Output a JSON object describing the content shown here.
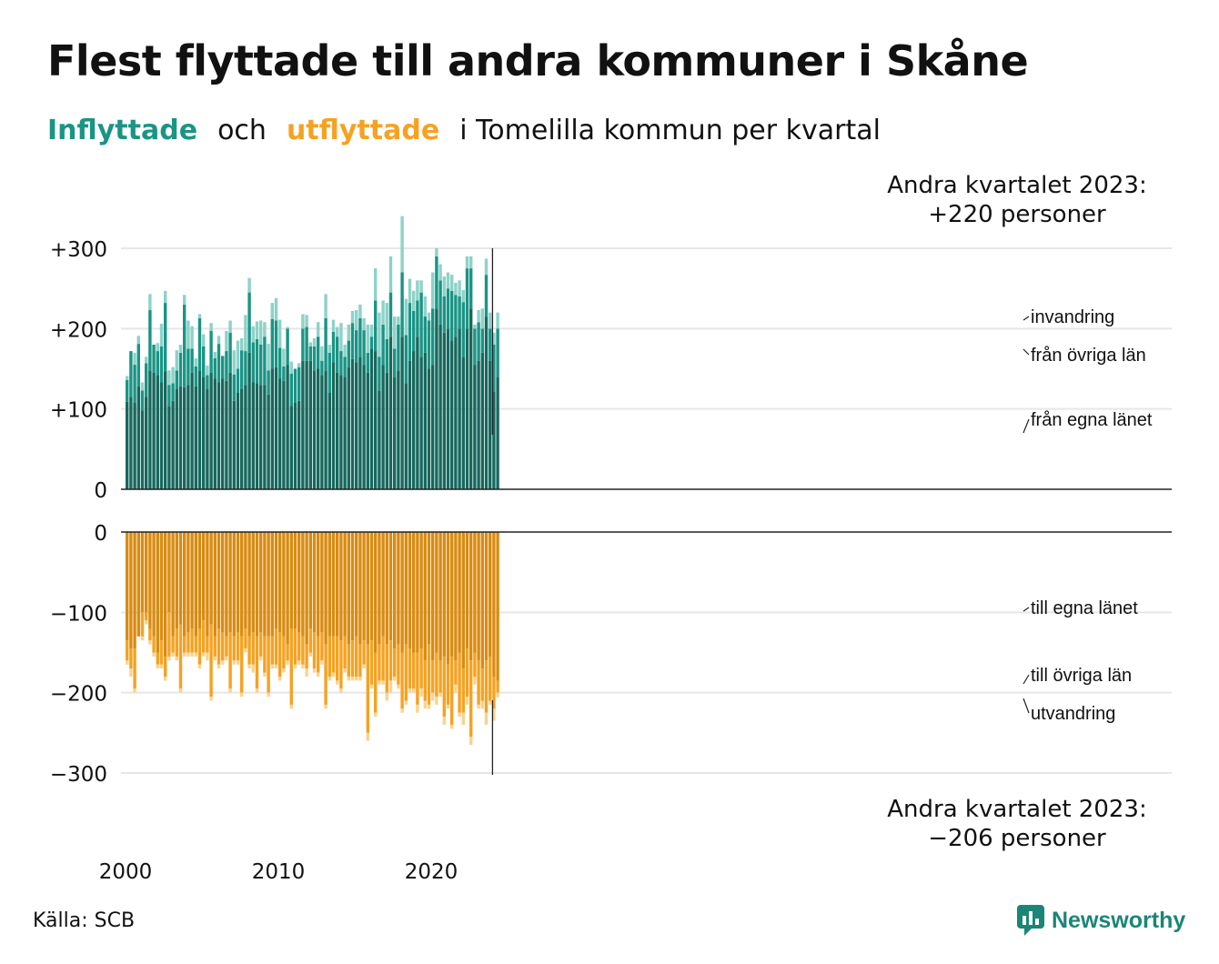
{
  "title": "Flest flyttade till andra kommuner i Skåne",
  "subtitle": {
    "in_word": "Inflyttade",
    "and_word": "och",
    "out_word": "utflyttade",
    "rest": "i Tomelilla  kommun  per  kvartal"
  },
  "source": "Källa: SCB",
  "logo_text": "Newsworthy",
  "colors": {
    "in_egna": "#17685e",
    "in_ovriga": "#1a9485",
    "in_invandring": "#8dd2c9",
    "out_egna": "#d98b12",
    "out_ovriga": "#f5a223",
    "out_utvandring": "#f8d491",
    "grid": "#e6e6e6",
    "axis": "#222222",
    "logo": "#1b8577"
  },
  "chart_data": [
    {
      "type": "bar",
      "stacked": true,
      "name": "Inflyttade",
      "x_start": "2000 Q1",
      "x_end": "2023 Q2",
      "ylim": [
        0,
        300
      ],
      "y_ticks": [
        "0",
        "+100",
        "+200",
        "+300"
      ],
      "x_tick_labels": [
        "2000",
        "2010",
        "2020"
      ],
      "annotation": [
        "Andra kvartalet 2023:",
        "+220 personer"
      ],
      "series": [
        {
          "name": "från egna länet",
          "values": [
            109,
            115,
            108,
            128,
            98,
            115,
            148,
            145,
            142,
            133,
            147,
            103,
            110,
            125,
            128,
            127,
            130,
            145,
            128,
            148,
            140,
            125,
            145,
            138,
            133,
            138,
            135,
            145,
            110,
            120,
            125,
            130,
            170,
            133,
            132,
            130,
            130,
            118,
            150,
            152,
            138,
            135,
            155,
            104,
            108,
            110,
            160,
            160,
            160,
            148,
            150,
            142,
            148,
            120,
            158,
            145,
            142,
            140,
            152,
            162,
            158,
            165,
            155,
            145,
            175,
            172,
            123,
            155,
            145,
            190,
            140,
            148,
            190,
            132,
            160,
            172,
            190,
            165,
            170,
            150,
            155,
            225,
            205,
            195,
            200,
            185,
            190,
            200,
            165,
            200,
            225,
            155,
            160,
            170,
            215,
            160,
            122,
            140
          ]
        },
        {
          "name": "från övriga län",
          "values": [
            27,
            57,
            47,
            53,
            25,
            42,
            75,
            35,
            30,
            45,
            85,
            27,
            22,
            23,
            42,
            103,
            45,
            30,
            25,
            65,
            38,
            17,
            52,
            25,
            48,
            28,
            37,
            50,
            33,
            30,
            48,
            42,
            75,
            50,
            55,
            50,
            60,
            30,
            62,
            58,
            38,
            18,
            45,
            40,
            42,
            42,
            40,
            42,
            18,
            30,
            40,
            18,
            65,
            50,
            38,
            45,
            30,
            25,
            33,
            45,
            40,
            48,
            43,
            25,
            15,
            63,
            42,
            50,
            42,
            55,
            35,
            57,
            80,
            60,
            72,
            50,
            45,
            80,
            45,
            60,
            70,
            65,
            55,
            45,
            50,
            62,
            52,
            40,
            68,
            75,
            50,
            45,
            48,
            30,
            52,
            40,
            58,
            60
          ]
        },
        {
          "name": "invandring",
          "values": [
            5,
            0,
            15,
            10,
            10,
            8,
            20,
            0,
            10,
            28,
            15,
            18,
            20,
            25,
            10,
            12,
            35,
            28,
            10,
            5,
            15,
            12,
            10,
            8,
            10,
            0,
            25,
            15,
            30,
            35,
            15,
            45,
            18,
            20,
            22,
            30,
            18,
            33,
            20,
            28,
            35,
            22,
            2,
            15,
            0,
            5,
            18,
            15,
            5,
            10,
            18,
            18,
            30,
            10,
            15,
            12,
            35,
            15,
            20,
            15,
            25,
            17,
            15,
            35,
            15,
            40,
            55,
            30,
            45,
            45,
            40,
            10,
            70,
            45,
            30,
            25,
            25,
            15,
            25,
            10,
            45,
            10,
            20,
            25,
            20,
            20,
            15,
            20,
            15,
            15,
            15,
            5,
            15,
            25,
            20,
            20,
            15,
            20
          ]
        }
      ]
    },
    {
      "type": "bar",
      "stacked": true,
      "name": "Utflyttade",
      "x_start": "2000 Q1",
      "x_end": "2023 Q2",
      "ylim": [
        -300,
        0
      ],
      "y_ticks": [
        "0",
        "−100",
        "−200",
        "−300"
      ],
      "annotation": [
        "Andra kvartalet 2023:",
        "−206 personer"
      ],
      "series": [
        {
          "name": "till egna länet",
          "values": [
            -135,
            -145,
            -145,
            -130,
            -100,
            -100,
            -120,
            -130,
            -150,
            -135,
            -155,
            -100,
            -130,
            -120,
            -115,
            -130,
            -125,
            -120,
            -130,
            -120,
            -110,
            -130,
            -115,
            -130,
            -120,
            -125,
            -130,
            -125,
            -130,
            -125,
            -130,
            -120,
            -130,
            -125,
            -130,
            -125,
            -130,
            -130,
            -130,
            -120,
            -125,
            -130,
            -140,
            -120,
            -120,
            -125,
            -130,
            -140,
            -120,
            -125,
            -130,
            -125,
            -140,
            -130,
            -130,
            -130,
            -135,
            -130,
            -140,
            -135,
            -130,
            -140,
            -135,
            -140,
            -135,
            -150,
            -140,
            -130,
            -140,
            -135,
            -145,
            -140,
            -150,
            -140,
            -145,
            -150,
            -150,
            -145,
            -160,
            -140,
            -160,
            -150,
            -160,
            -155,
            -165,
            -155,
            -160,
            -150,
            -170,
            -145,
            -160,
            -150,
            -160,
            -170,
            -160,
            -155,
            -180,
            -185
          ]
        },
        {
          "name": "till övriga län",
          "values": [
            -25,
            -25,
            -50,
            0,
            -30,
            -10,
            -15,
            -20,
            -15,
            -30,
            -25,
            -55,
            -20,
            -35,
            -80,
            -20,
            -25,
            -30,
            -20,
            -45,
            -40,
            -20,
            -90,
            -25,
            -45,
            -35,
            -25,
            -70,
            -30,
            -35,
            -70,
            -25,
            -35,
            -40,
            -65,
            -30,
            -45,
            -70,
            -35,
            -45,
            -55,
            -40,
            -20,
            -95,
            -45,
            -35,
            -35,
            -30,
            -30,
            -45,
            -45,
            -35,
            -75,
            -50,
            -45,
            -55,
            -60,
            -40,
            -40,
            -45,
            -50,
            -40,
            -30,
            -110,
            -55,
            -75,
            -45,
            -55,
            -60,
            -50,
            -35,
            -50,
            -70,
            -70,
            -50,
            -45,
            -65,
            -50,
            -50,
            -75,
            -40,
            -55,
            -40,
            -75,
            -50,
            -85,
            -30,
            -75,
            -55,
            -60,
            -95,
            -30,
            -55,
            -40,
            -65,
            -55,
            -40,
            -15
          ]
        },
        {
          "name": "utvandring",
          "values": [
            -5,
            -10,
            -5,
            0,
            -5,
            -5,
            -5,
            -5,
            -5,
            -5,
            -5,
            -5,
            -5,
            -5,
            -5,
            -5,
            -5,
            -5,
            -5,
            -5,
            -5,
            -10,
            -5,
            -5,
            -5,
            -5,
            -5,
            -5,
            -5,
            -5,
            -5,
            -5,
            -5,
            -10,
            -5,
            -5,
            -5,
            -5,
            -5,
            -5,
            -5,
            -5,
            -5,
            -5,
            -5,
            -5,
            -5,
            -10,
            -5,
            -5,
            -5,
            -5,
            -5,
            -5,
            -5,
            -5,
            -5,
            -5,
            -5,
            -5,
            -5,
            -5,
            -5,
            -10,
            -5,
            -5,
            -5,
            -5,
            -10,
            -15,
            -5,
            -5,
            -5,
            -5,
            -5,
            -5,
            -10,
            -10,
            -10,
            -5,
            -10,
            -10,
            -5,
            -10,
            -5,
            -5,
            -10,
            -5,
            -15,
            -10,
            -10,
            -10,
            -5,
            -10,
            -15,
            -5,
            -15,
            -6
          ]
        }
      ]
    }
  ],
  "labels": {
    "in": [
      "invandring",
      "från övriga län",
      "från egna länet"
    ],
    "out": [
      "till egna länet",
      "till övriga län",
      "utvandring"
    ]
  }
}
